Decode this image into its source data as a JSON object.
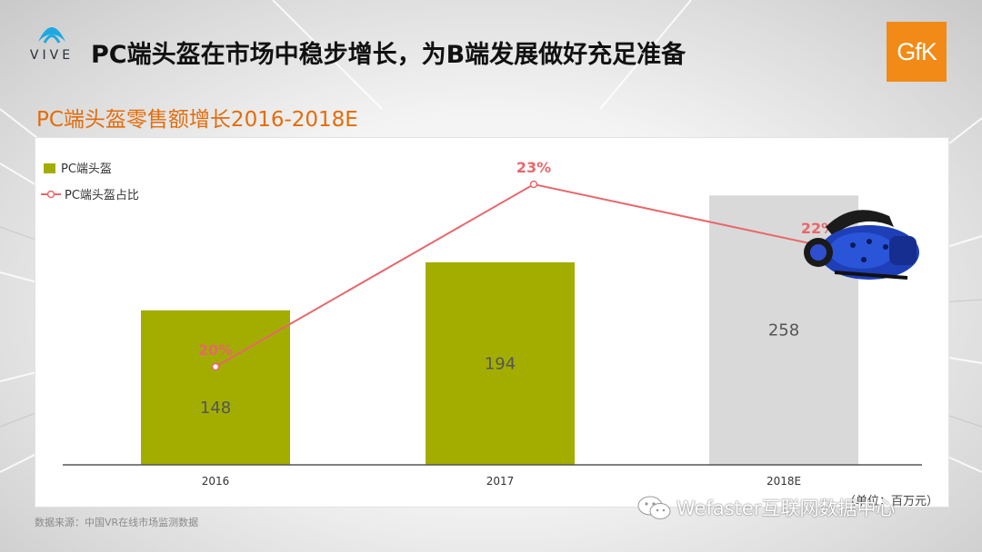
{
  "header": {
    "vive_logo_text": "VIVE",
    "title": "PC端头盔在市场中稳步增长，为B端发展做好充足准备",
    "gfk_logo_text": "GfK"
  },
  "chart_title": "PC端头盔零售额增长2016-2018E",
  "source": "数据来源：中国VR在线市场监测数据",
  "unit": "（单位：百万元）",
  "watermark": "Wefaster互联网数据中心",
  "colors": {
    "accent": "#e36c0a",
    "bar_actual": "#a3ad00",
    "bar_estimate": "#d9d9d9",
    "line": "#e8676b",
    "gfk": "#f28a17"
  },
  "chart_data": {
    "type": "bar",
    "categories": [
      "2016",
      "2017",
      "2018E"
    ],
    "series": [
      {
        "name": "PC端头盔",
        "kind": "bar",
        "values": [
          148,
          194,
          258
        ],
        "estimate_flags": [
          false,
          false,
          true
        ]
      },
      {
        "name": "PC端头盔占比",
        "kind": "line",
        "values": [
          20,
          23,
          22
        ],
        "value_labels": [
          "20%",
          "23%",
          "22%"
        ],
        "axis": "secondary"
      }
    ],
    "bar_labels": [
      "148",
      "194",
      "258"
    ],
    "legend": [
      "PC端头盔",
      "PC端头盔占比"
    ],
    "legend_position": "top-left",
    "grid": false
  }
}
